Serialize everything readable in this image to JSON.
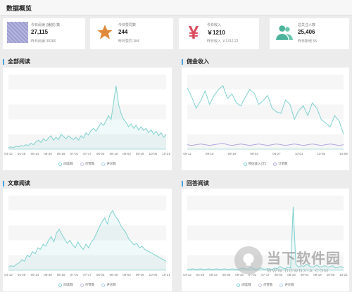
{
  "header": {
    "title": "数据概览"
  },
  "cards": [
    {
      "label": "今日阅读 (播放) 数",
      "value": "27,115",
      "sub": "昨日阅读 30266",
      "icon": "book-pattern-icon",
      "color": "#a2a2d6"
    },
    {
      "label": "今日赞同数",
      "value": "244",
      "sub": "昨日赞同 384",
      "icon": "star-icon",
      "color": "#e0893b"
    },
    {
      "label": "今日收入",
      "value": "￥1210",
      "sub": "昨日收入 ￥1312.22",
      "icon": "yen-icon",
      "color": "#d94a5c"
    },
    {
      "label": "总关注人数",
      "value": "25,406",
      "sub": "昨日新增 55",
      "icon": "users-icon",
      "color": "#4db39c"
    }
  ],
  "sections": {
    "all_reads": "全部阅读",
    "commission": "佣金收入",
    "article_reads": "文章阅读",
    "answer_reads": "回答阅读"
  },
  "chart_data": [
    {
      "type": "line",
      "title": "全部阅读",
      "ticks": [
        "04-12",
        "04-28",
        "05-14",
        "05-30",
        "06-15",
        "07-01",
        "07-17",
        "08-02",
        "08-18",
        "09-03",
        "09-19",
        "10-05",
        "10-21"
      ],
      "series": [
        {
          "name": "阅读数",
          "color": "#7fd1cf",
          "values": [
            2,
            3,
            2,
            4,
            3,
            5,
            4,
            6,
            5,
            8,
            6,
            10,
            12,
            9,
            14,
            11,
            15,
            18,
            12,
            16,
            13,
            20,
            17,
            14,
            18,
            15,
            13,
            16,
            12,
            18,
            15,
            22,
            19,
            25,
            28,
            24,
            30,
            35,
            32,
            38,
            45,
            40,
            62,
            85,
            60,
            48,
            40,
            36,
            30,
            34,
            28,
            32,
            26,
            30,
            25,
            28,
            22,
            26,
            20,
            24,
            18,
            22,
            16,
            20
          ]
        },
        {
          "name": "点赞数",
          "color": "#c9c3e6",
          "values": []
        },
        {
          "name": "评论数",
          "color": "#b3d4ef",
          "values": []
        }
      ],
      "ylim": [
        0,
        100
      ]
    },
    {
      "type": "line",
      "title": "佣金收入",
      "ticks": [
        "09-11",
        "09-15",
        "09-19",
        "09-23",
        "09-27",
        "10-01",
        "10-05",
        "10-09"
      ],
      "series": [
        {
          "name": "预估收入(元)",
          "color": "#7fd1cf",
          "values": [
            82,
            70,
            55,
            65,
            78,
            60,
            72,
            80,
            85,
            68,
            74,
            62,
            58,
            70,
            80,
            75,
            60,
            65,
            72,
            55,
            50,
            48,
            66,
            60,
            40,
            52,
            58,
            45,
            62,
            55,
            40,
            35,
            30,
            45,
            38,
            20
          ]
        },
        {
          "name": "订单数",
          "color": "#b7a8e0",
          "values": [
            6,
            5,
            6,
            7,
            6,
            5,
            6,
            7,
            8,
            6,
            5,
            6,
            7,
            6,
            5,
            6,
            7,
            6,
            5,
            6,
            7,
            6,
            5,
            6,
            7,
            6,
            5,
            6,
            7,
            6,
            5,
            6,
            7,
            6,
            5,
            6
          ]
        }
      ],
      "ylim": [
        0,
        100
      ]
    },
    {
      "type": "line",
      "title": "文章阅读",
      "ticks": [
        "04-12",
        "04-28",
        "05-14",
        "05-30",
        "06-15",
        "07-01",
        "07-17",
        "08-02",
        "08-18",
        "09-03",
        "09-19",
        "10-05",
        "10-21"
      ],
      "series": [
        {
          "name": "阅读数",
          "color": "#7fd1cf",
          "values": [
            4,
            6,
            5,
            8,
            10,
            14,
            12,
            20,
            18,
            25,
            22,
            30,
            28,
            35,
            32,
            40,
            45,
            38,
            50,
            55,
            48,
            42,
            36,
            40,
            34,
            30,
            38,
            32,
            28,
            35,
            30,
            38,
            42,
            50,
            58,
            65,
            70,
            62,
            75,
            80,
            72,
            68,
            60,
            55,
            50,
            42,
            38,
            34,
            36,
            30,
            32,
            28,
            26,
            24,
            22,
            20,
            18,
            16,
            14,
            12
          ]
        },
        {
          "name": "点赞数",
          "color": "#c9c3e6",
          "values": []
        },
        {
          "name": "评论数",
          "color": "#b3d4ef",
          "values": []
        }
      ],
      "ylim": [
        0,
        100
      ]
    },
    {
      "type": "line",
      "title": "回答阅读",
      "ticks": [
        "04-12",
        "04-28",
        "05-14",
        "05-30",
        "06-15",
        "07-01",
        "07-17",
        "08-02",
        "08-18",
        "09-03",
        "09-19",
        "10-05",
        "10-21"
      ],
      "series": [
        {
          "name": "阅读数",
          "color": "#7fd1cf",
          "values": [
            1,
            1,
            2,
            1,
            1,
            2,
            1,
            1,
            2,
            1,
            1,
            2,
            1,
            1,
            2,
            1,
            1,
            2,
            1,
            1,
            2,
            3,
            2,
            1,
            4,
            2,
            1,
            2,
            3,
            1,
            2,
            2,
            1,
            3,
            2,
            5,
            3,
            2,
            4,
            3,
            85,
            8,
            4,
            6,
            5,
            8,
            6,
            4,
            5,
            7,
            4,
            5,
            6,
            4,
            5,
            6,
            3,
            4,
            5,
            3
          ]
        },
        {
          "name": "点赞数",
          "color": "#c9c3e6",
          "values": []
        },
        {
          "name": "评论数",
          "color": "#b3d4ef",
          "values": []
        }
      ],
      "ylim": [
        0,
        100
      ]
    }
  ],
  "watermark": {
    "zh": "当下软件园",
    "en": "WWW.DOWNXIA.COM"
  }
}
